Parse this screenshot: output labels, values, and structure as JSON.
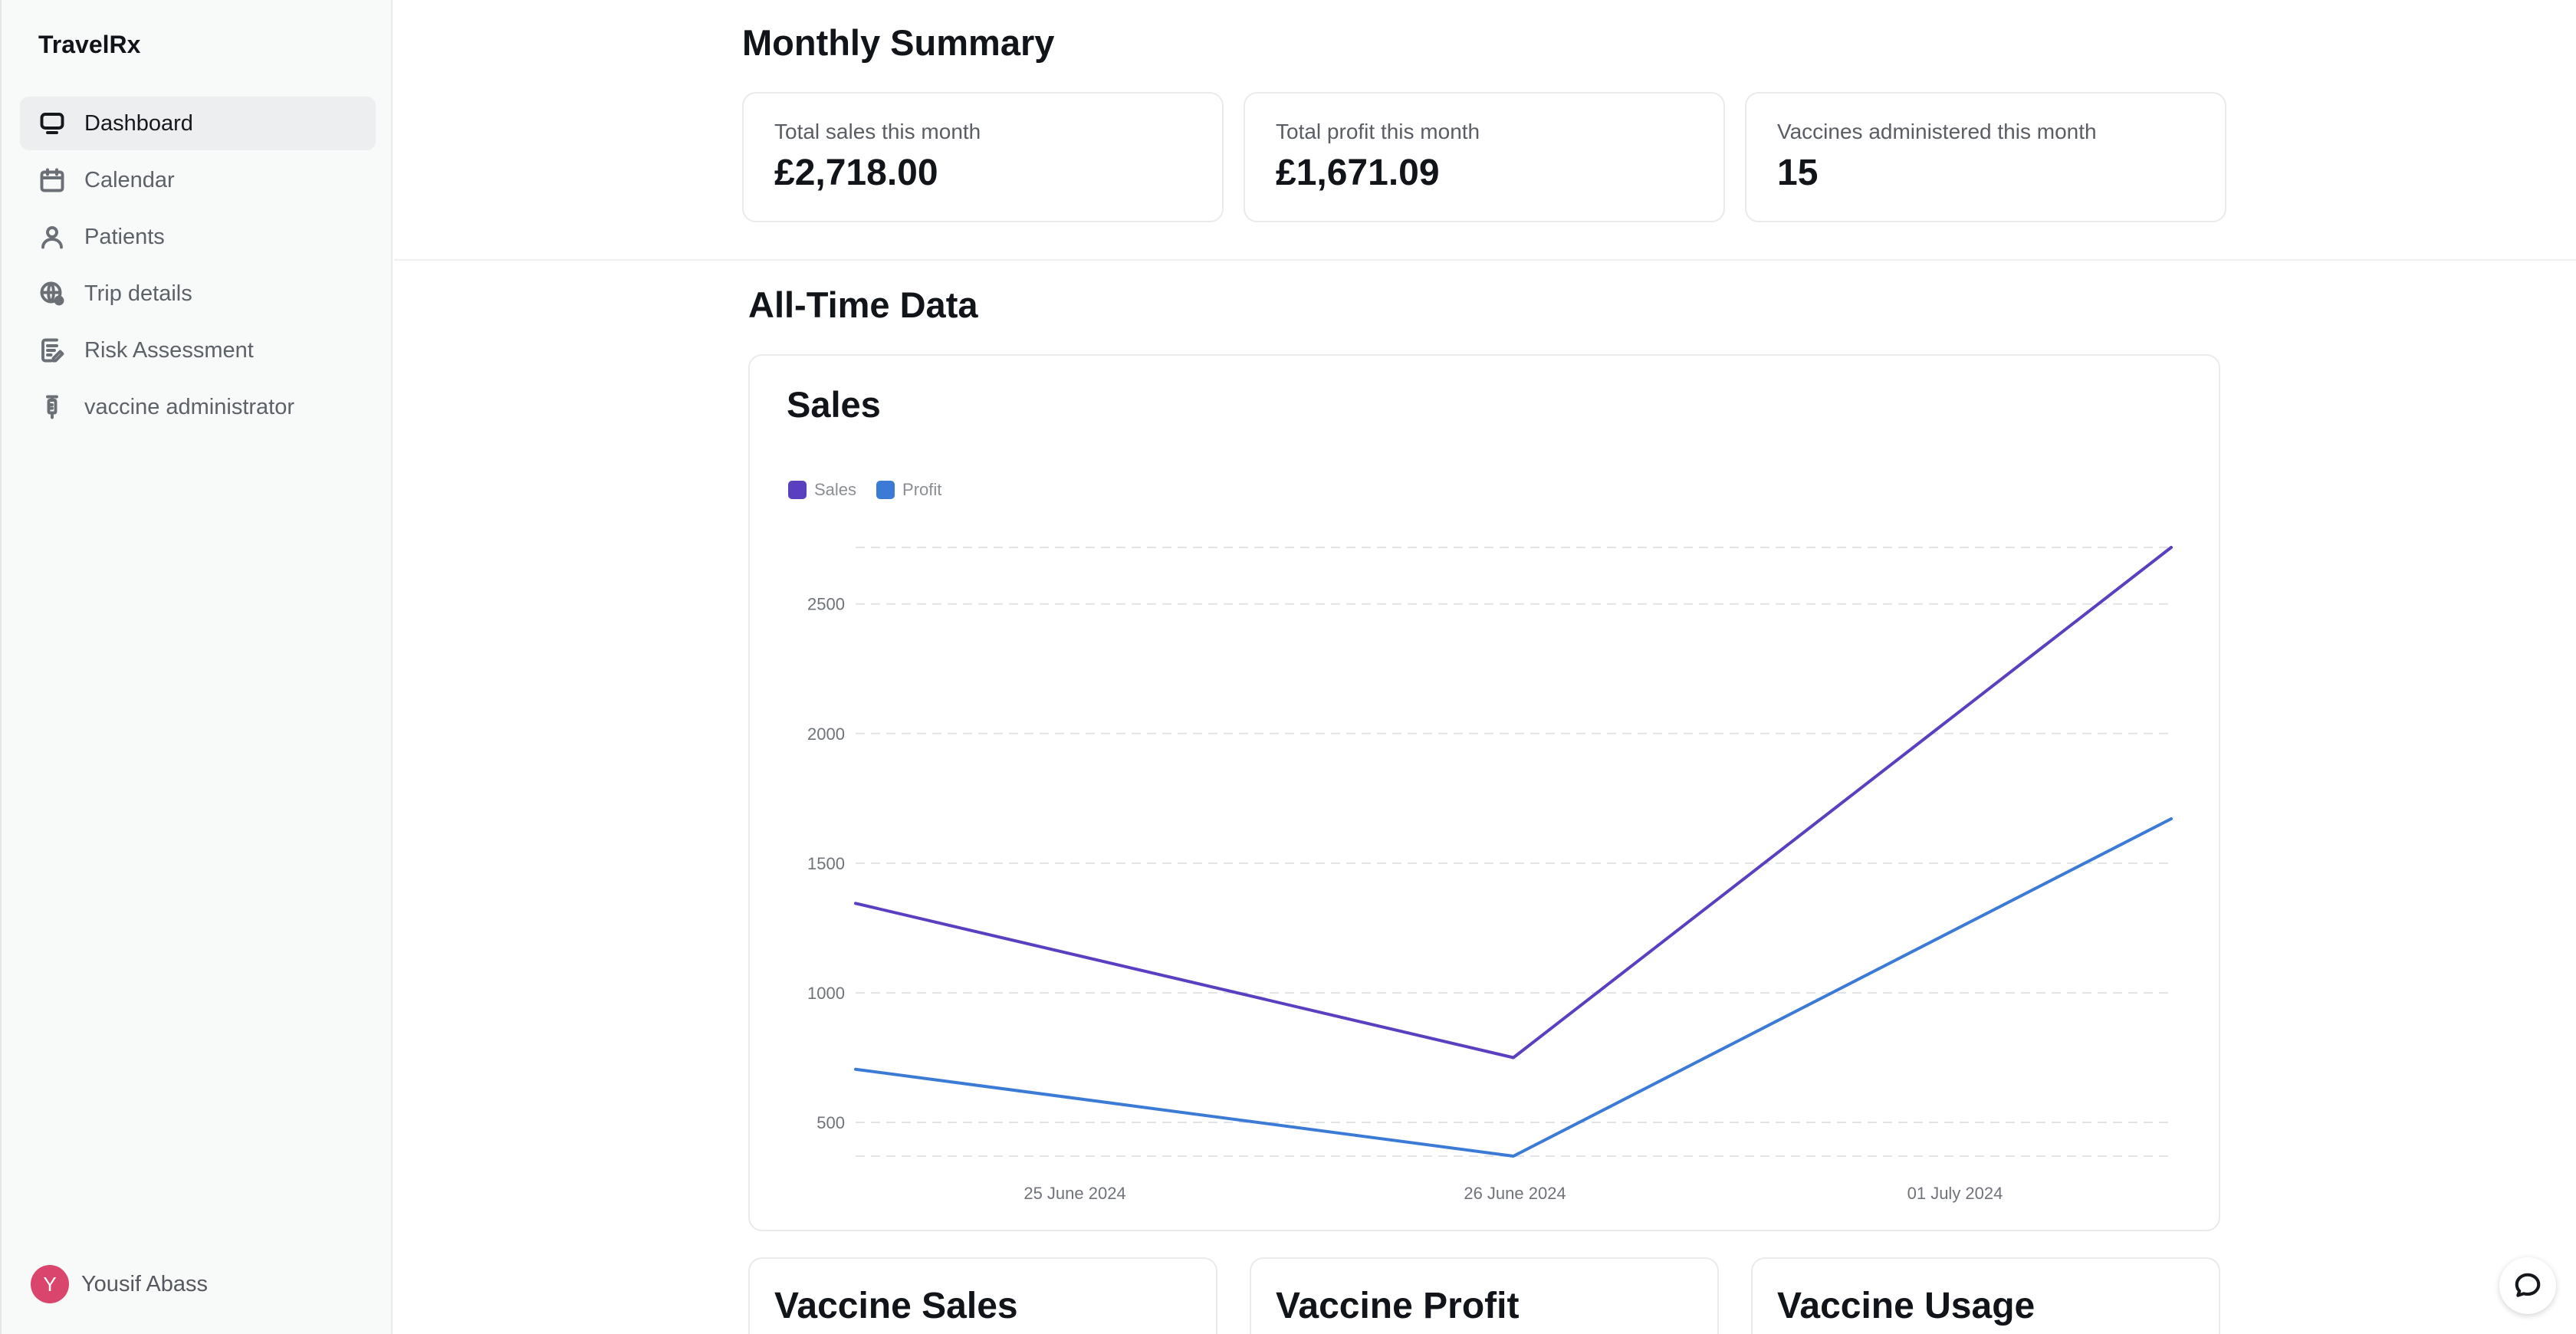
{
  "app": {
    "brand": "TravelRx"
  },
  "sidebar": {
    "items": [
      {
        "label": "Dashboard",
        "icon": "monitor-icon",
        "active": true
      },
      {
        "label": "Calendar",
        "icon": "calendar-icon",
        "active": false
      },
      {
        "label": "Patients",
        "icon": "user-icon",
        "active": false
      },
      {
        "label": "Trip details",
        "icon": "globe-pin-icon",
        "active": false
      },
      {
        "label": "Risk Assessment",
        "icon": "clipboard-edit-icon",
        "active": false
      },
      {
        "label": "vaccine administrator",
        "icon": "syringe-icon",
        "active": false
      }
    ],
    "user": {
      "initial": "Y",
      "name": "Yousif Abass"
    }
  },
  "monthly_summary": {
    "title": "Monthly Summary",
    "cards": [
      {
        "label": "Total sales this month",
        "value": "£2,718.00"
      },
      {
        "label": "Total profit this month",
        "value": "£1,671.09"
      },
      {
        "label": "Vaccines administered this month",
        "value": "15"
      }
    ]
  },
  "all_time": {
    "title": "All-Time Data",
    "chart_title": "Sales",
    "bottom_cards": [
      "Vaccine Sales",
      "Vaccine Profit",
      "Vaccine Usage"
    ]
  },
  "colors": {
    "sales": "#5a3fc0",
    "profit": "#3b7bd6",
    "accent": "#d9456c"
  },
  "chart_data": {
    "type": "line",
    "title": "Sales",
    "x": [
      "25 June 2024",
      "26 June 2024",
      "01 July 2024"
    ],
    "y_ticks": [
      500,
      1000,
      1500,
      2000,
      2500
    ],
    "ylim": [
      370,
      2718
    ],
    "grid": true,
    "legend_position": "top-left",
    "series": [
      {
        "name": "Sales",
        "color": "#5a3fc0",
        "points": [
          1345,
          750,
          2718
        ]
      },
      {
        "name": "Profit",
        "color": "#3b7bd6",
        "points": [
          705,
          370,
          1671.09
        ]
      }
    ]
  }
}
